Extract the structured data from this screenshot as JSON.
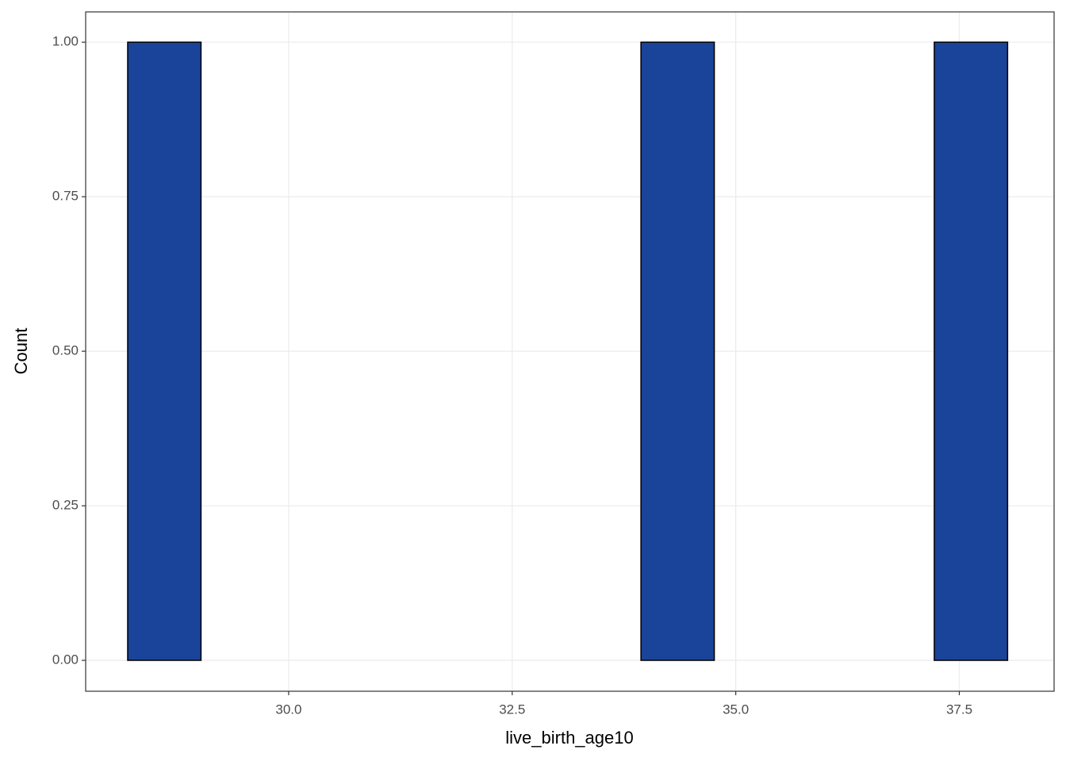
{
  "chart_data": {
    "type": "histogram",
    "x_label": "live_birth_age10",
    "y_label": "Count",
    "bins": [
      28.2,
      29.02,
      29.84,
      30.66,
      31.48,
      32.3,
      33.12,
      33.94,
      34.76,
      35.58,
      36.4,
      37.22,
      38.04
    ],
    "values": [
      1,
      0,
      0,
      0,
      0,
      0,
      0,
      1,
      0,
      0,
      0,
      1
    ],
    "color": "#1a4499",
    "edge_color": "#000000",
    "xlim": [
      27.73,
      38.56
    ],
    "ylim": [
      -0.05,
      1.049
    ],
    "xticks": [
      {
        "value": 30,
        "label": "30.0"
      },
      {
        "value": 32.5,
        "label": "32.5"
      },
      {
        "value": 35,
        "label": "35.0"
      },
      {
        "value": 37.5,
        "label": "37.5"
      }
    ],
    "yticks": [
      {
        "value": 0,
        "label": "0.00"
      },
      {
        "value": 0.25,
        "label": "0.25"
      },
      {
        "value": 0.5,
        "label": "0.50"
      },
      {
        "value": 0.75,
        "label": "0.75"
      },
      {
        "value": 1,
        "label": "1.00"
      }
    ],
    "grid": true
  }
}
